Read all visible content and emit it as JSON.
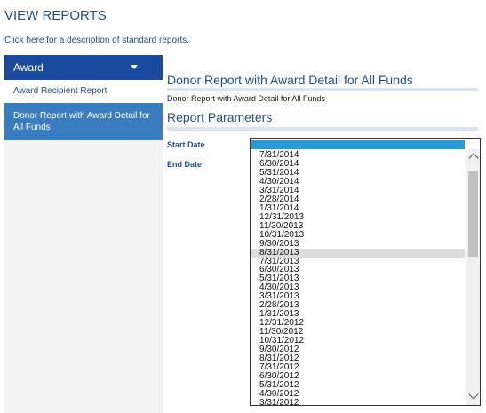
{
  "header": {
    "title": "VIEW REPORTS"
  },
  "intro": {
    "before": "Click",
    "link": "here",
    "after": "for a description of standard reports."
  },
  "sidebar": {
    "dropdown": "Award",
    "items": [
      "Award Recipient Report",
      "Donor Report with Award Detail for All Funds"
    ]
  },
  "main": {
    "heading": "Donor Report with Award Detail for All Funds",
    "description": "Donor Report with Award Detail for All Funds",
    "params_heading": "Report Parameters",
    "params": [
      "Start Date",
      "End Date"
    ]
  },
  "date_list": {
    "hovered": 11,
    "options": [
      "7/31/2014",
      "6/30/2014",
      "5/31/2014",
      "4/30/2014",
      "3/31/2014",
      "2/28/2014",
      "1/31/2014",
      "12/31/2013",
      "11/30/2013",
      "10/31/2013",
      "9/30/2013",
      "8/31/2013",
      "7/31/2013",
      "6/30/2013",
      "5/31/2013",
      "4/30/2013",
      "3/31/2013",
      "2/28/2013",
      "1/31/2013",
      "12/31/2012",
      "11/30/2012",
      "10/31/2012",
      "9/30/2012",
      "8/31/2012",
      "7/31/2012",
      "6/30/2012",
      "5/31/2012",
      "4/30/2012",
      "3/31/2012"
    ]
  }
}
